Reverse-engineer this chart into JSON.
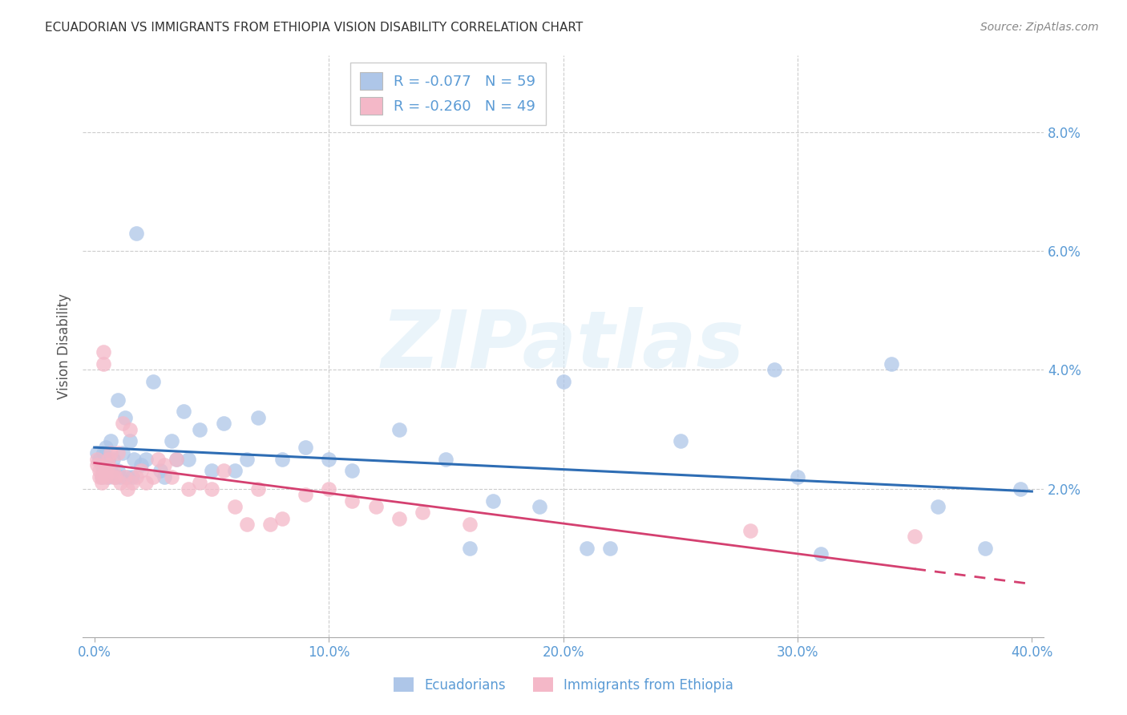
{
  "title": "ECUADORIAN VS IMMIGRANTS FROM ETHIOPIA VISION DISABILITY CORRELATION CHART",
  "source": "Source: ZipAtlas.com",
  "ylabel": "Vision Disability",
  "tick_color": "#5b9bd5",
  "bg_color": "#ffffff",
  "grid_color": "#cccccc",
  "watermark": "ZIPatlas",
  "blue_R": "-0.077",
  "blue_N": 59,
  "pink_R": "-0.260",
  "pink_N": 49,
  "blue_color": "#aec6e8",
  "blue_line_color": "#2e6db4",
  "pink_color": "#f4b8c8",
  "pink_line_color": "#d44070",
  "xlim": [
    -0.005,
    0.405
  ],
  "ylim": [
    -0.005,
    0.093
  ],
  "xticks": [
    0.0,
    0.1,
    0.2,
    0.3,
    0.4
  ],
  "yticks": [
    0.02,
    0.04,
    0.06,
    0.08
  ],
  "blue_x": [
    0.001,
    0.002,
    0.003,
    0.003,
    0.004,
    0.004,
    0.005,
    0.005,
    0.006,
    0.006,
    0.007,
    0.007,
    0.008,
    0.009,
    0.01,
    0.01,
    0.011,
    0.012,
    0.013,
    0.014,
    0.015,
    0.016,
    0.017,
    0.018,
    0.02,
    0.022,
    0.025,
    0.028,
    0.03,
    0.033,
    0.035,
    0.038,
    0.04,
    0.045,
    0.05,
    0.055,
    0.06,
    0.065,
    0.07,
    0.08,
    0.09,
    0.1,
    0.11,
    0.13,
    0.15,
    0.16,
    0.17,
    0.19,
    0.2,
    0.21,
    0.22,
    0.25,
    0.29,
    0.3,
    0.31,
    0.34,
    0.36,
    0.38,
    0.395
  ],
  "blue_y": [
    0.026,
    0.025,
    0.024,
    0.022,
    0.026,
    0.023,
    0.025,
    0.027,
    0.025,
    0.022,
    0.023,
    0.028,
    0.025,
    0.022,
    0.023,
    0.035,
    0.022,
    0.026,
    0.032,
    0.022,
    0.028,
    0.022,
    0.025,
    0.063,
    0.024,
    0.025,
    0.038,
    0.023,
    0.022,
    0.028,
    0.025,
    0.033,
    0.025,
    0.03,
    0.023,
    0.031,
    0.023,
    0.025,
    0.032,
    0.025,
    0.027,
    0.025,
    0.023,
    0.03,
    0.025,
    0.01,
    0.018,
    0.017,
    0.038,
    0.01,
    0.01,
    0.028,
    0.04,
    0.022,
    0.009,
    0.041,
    0.017,
    0.01,
    0.02
  ],
  "pink_x": [
    0.001,
    0.001,
    0.002,
    0.002,
    0.003,
    0.003,
    0.004,
    0.004,
    0.005,
    0.005,
    0.006,
    0.006,
    0.007,
    0.008,
    0.008,
    0.009,
    0.01,
    0.011,
    0.012,
    0.013,
    0.014,
    0.015,
    0.016,
    0.018,
    0.02,
    0.022,
    0.025,
    0.027,
    0.03,
    0.033,
    0.035,
    0.04,
    0.045,
    0.05,
    0.055,
    0.06,
    0.065,
    0.07,
    0.075,
    0.08,
    0.09,
    0.1,
    0.11,
    0.12,
    0.13,
    0.14,
    0.16,
    0.28,
    0.35
  ],
  "pink_y": [
    0.025,
    0.024,
    0.023,
    0.022,
    0.022,
    0.021,
    0.043,
    0.041,
    0.023,
    0.022,
    0.025,
    0.024,
    0.026,
    0.022,
    0.023,
    0.022,
    0.026,
    0.021,
    0.031,
    0.022,
    0.02,
    0.03,
    0.021,
    0.022,
    0.023,
    0.021,
    0.022,
    0.025,
    0.024,
    0.022,
    0.025,
    0.02,
    0.021,
    0.02,
    0.023,
    0.017,
    0.014,
    0.02,
    0.014,
    0.015,
    0.019,
    0.02,
    0.018,
    0.017,
    0.015,
    0.016,
    0.014,
    0.013,
    0.012
  ]
}
